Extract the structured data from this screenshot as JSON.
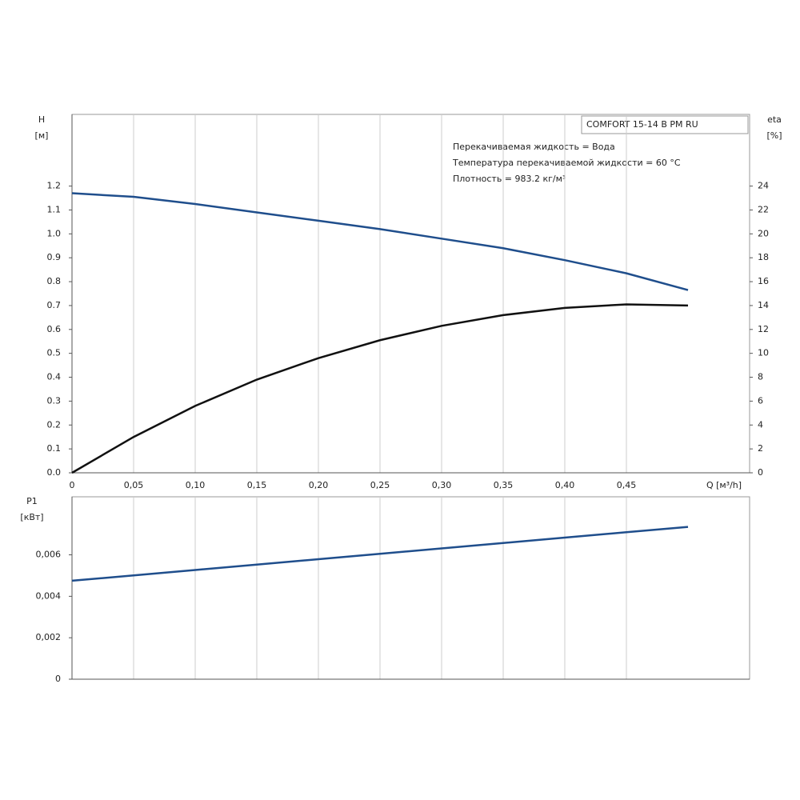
{
  "chart_data": [
    {
      "type": "line",
      "title": "COMFORT 15-14 B PM RU",
      "annotations": [
        "Перекачиваемая жидкость = Вода",
        "Температура перекачиваемой жидкости = 60 °C",
        "Плотность = 983.2 кг/м³"
      ],
      "ylabel": "H",
      "yunit": "[м]",
      "y2label": "eta",
      "y2unit": "[%]",
      "xlabel": "Q [м³/h]",
      "x": [
        0,
        0.05,
        0.1,
        0.15,
        0.2,
        0.25,
        0.3,
        0.35,
        0.4,
        0.45,
        0.5
      ],
      "series": [
        {
          "color": "#1f4e8c",
          "values": [
            1.17,
            1.155,
            1.125,
            1.09,
            1.055,
            1.02,
            0.98,
            0.94,
            0.89,
            0.835,
            0.765
          ]
        },
        {
          "color": "#111111",
          "axis": "y2",
          "values": [
            0,
            3.0,
            5.6,
            7.8,
            9.6,
            11.1,
            12.3,
            13.2,
            13.8,
            14.1,
            14.0
          ]
        }
      ],
      "xlim": [
        0,
        0.55
      ],
      "xticks": [
        0,
        {
          "value": 0.05,
          "label": "0,05"
        },
        {
          "value": 0.1,
          "label": "0,10"
        },
        {
          "value": 0.15,
          "label": "0,15"
        },
        {
          "value": 0.2,
          "label": "0,20"
        },
        {
          "value": 0.25,
          "label": "0,25"
        },
        {
          "value": 0.3,
          "label": "0,30"
        },
        {
          "value": 0.35,
          "label": "0,35"
        },
        {
          "value": 0.4,
          "label": "0,40"
        },
        {
          "value": 0.45,
          "label": "0,45"
        }
      ],
      "ylim": [
        0,
        1.5
      ],
      "yticks": [
        {
          "value": 0,
          "label": "0.0"
        },
        0.1,
        0.2,
        0.3,
        0.4,
        0.5,
        0.6,
        0.7,
        0.8,
        0.9,
        {
          "value": 1,
          "label": "1.0"
        },
        1.1,
        1.2
      ],
      "y2lim": [
        0,
        30
      ],
      "y2ticks": [
        0,
        2,
        4,
        6,
        8,
        10,
        12,
        14,
        16,
        18,
        20,
        22,
        24
      ]
    },
    {
      "type": "line",
      "ylabel": "P1",
      "yunit": "[кВт]",
      "x": [
        0,
        0.05,
        0.1,
        0.15,
        0.2,
        0.25,
        0.3,
        0.35,
        0.4,
        0.45,
        0.5
      ],
      "series": [
        {
          "color": "#1f4e8c",
          "values": [
            0.00475,
            0.00501,
            0.00527,
            0.00553,
            0.00579,
            0.00605,
            0.00631,
            0.00657,
            0.00683,
            0.00709,
            0.00735
          ]
        }
      ],
      "xlim": [
        0,
        0.55
      ],
      "ylim": [
        0,
        0.0088
      ],
      "yticks": [
        0,
        {
          "value": 0.002,
          "label": "0,002"
        },
        {
          "value": 0.004,
          "label": "0,004"
        },
        {
          "value": 0.006,
          "label": "0,006"
        }
      ]
    }
  ]
}
